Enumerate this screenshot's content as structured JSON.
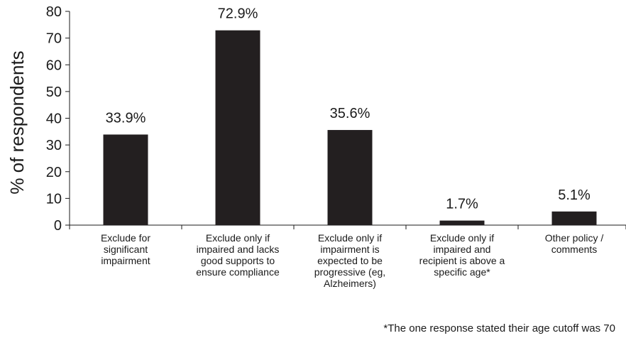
{
  "chart_data": {
    "type": "bar",
    "categories": [
      "Exclude for significant impairment",
      "Exclude only if impaired and lacks good supports to ensure compliance",
      "Exclude only if impairment is expected to be progressive (eg, Alzheimers)",
      "Exclude only if impaired and recipient is above a specific age*",
      "Other policy / comments"
    ],
    "category_lines": [
      [
        "Exclude for",
        "significant",
        "impairment"
      ],
      [
        "Exclude only if",
        "impaired and lacks",
        "good supports to",
        "ensure compliance"
      ],
      [
        "Exclude only if",
        "impairment is",
        "expected to be",
        "progressive (eg,",
        "Alzheimers)"
      ],
      [
        "Exclude only if",
        "impaired and",
        "recipient is above a",
        "specific age*"
      ],
      [
        "Other policy /",
        "comments"
      ]
    ],
    "values": [
      33.9,
      72.9,
      35.6,
      1.7,
      5.1
    ],
    "data_labels": [
      "33.9%",
      "72.9%",
      "35.6%",
      "1.7%",
      "5.1%"
    ],
    "ylabel": "% of respondents",
    "xlabel": "",
    "ylim": [
      0,
      80
    ],
    "yticks": [
      0,
      10,
      20,
      30,
      40,
      50,
      60,
      70,
      80
    ],
    "grid": false,
    "bar_color": "#231f20"
  },
  "footnote": "*The one response stated their age cutoff was 70"
}
